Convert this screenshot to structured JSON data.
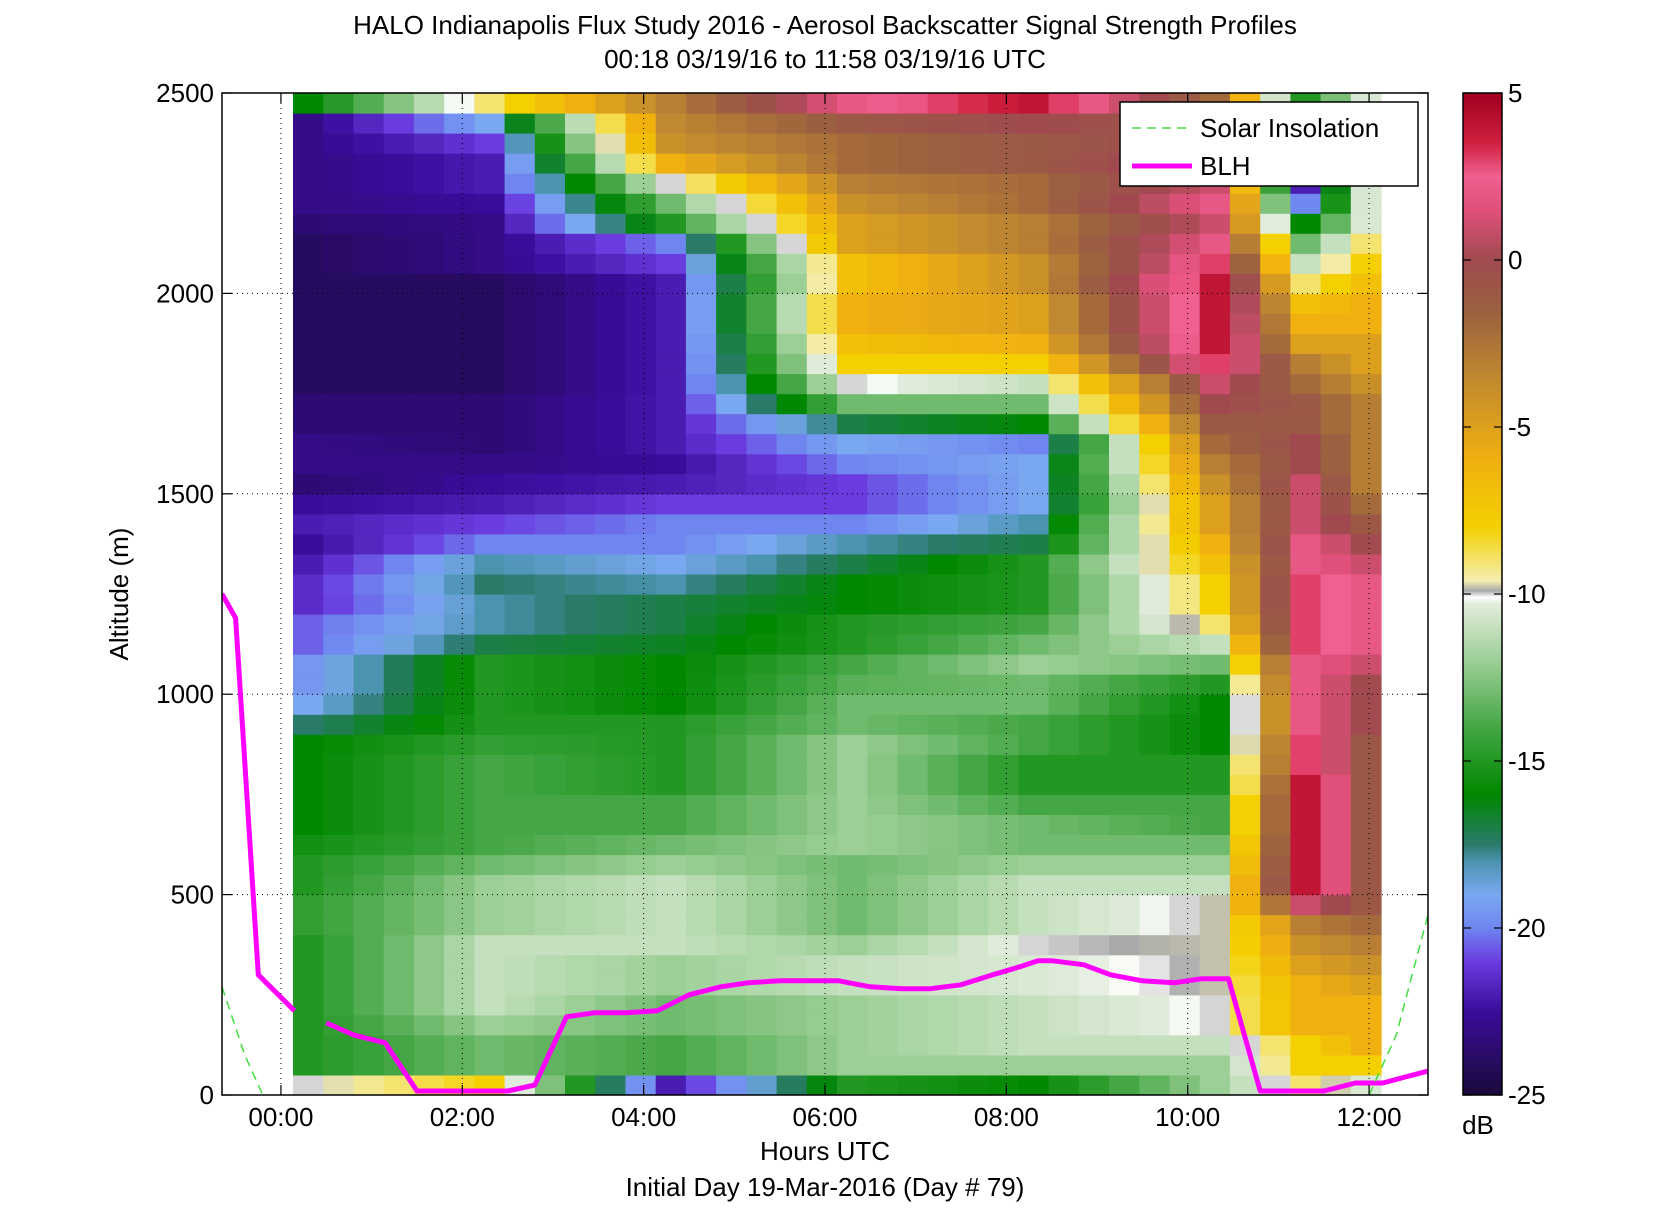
{
  "chart_data": {
    "type": "heatmap",
    "title": "HALO Indianapolis Flux Study 2016 - Aerosol Backscatter Signal Strength Profiles",
    "subtitle": "00:18 03/19/16 to 11:58 03/19/16  UTC",
    "xlabel": "Hours UTC",
    "xlabel2": "Initial Day 19-Mar-2016 (Day # 79)",
    "ylabel": "Altitude (m)",
    "xlim_hours": [
      -0.65,
      12.65
    ],
    "ylim": [
      0,
      2500
    ],
    "x_ticks": [
      {
        "hour": 0,
        "label": "00:00"
      },
      {
        "hour": 2,
        "label": "02:00"
      },
      {
        "hour": 4,
        "label": "04:00"
      },
      {
        "hour": 6,
        "label": "06:00"
      },
      {
        "hour": 8,
        "label": "08:00"
      },
      {
        "hour": 10,
        "label": "10:00"
      },
      {
        "hour": 12,
        "label": "12:00"
      }
    ],
    "y_ticks": [
      0,
      500,
      1000,
      1500,
      2000,
      2500
    ],
    "grid": true,
    "colorbar": {
      "min": -25,
      "max": 5,
      "unit": "dB",
      "ticks": [
        5,
        0,
        -5,
        -10,
        -15,
        -20,
        -25
      ],
      "stops": [
        {
          "v": -25,
          "c": "#1a0a3a"
        },
        {
          "v": -22.5,
          "c": "#3a0c9a"
        },
        {
          "v": -21,
          "c": "#6a3ce0"
        },
        {
          "v": -20,
          "c": "#6f86f0"
        },
        {
          "v": -19,
          "c": "#7aa8f0"
        },
        {
          "v": -18,
          "c": "#4a94b0"
        },
        {
          "v": -17.5,
          "c": "#2a7a6a"
        },
        {
          "v": -16,
          "c": "#008800"
        },
        {
          "v": -14,
          "c": "#44a644"
        },
        {
          "v": -12,
          "c": "#9ccf96"
        },
        {
          "v": -10.3,
          "c": "#e2ecdc"
        },
        {
          "v": -10.1,
          "c": "#ffffff"
        },
        {
          "v": -9.9,
          "c": "#aaaaaa"
        },
        {
          "v": -9.6,
          "c": "#f4eeb0"
        },
        {
          "v": -8,
          "c": "#f4d000"
        },
        {
          "v": -6,
          "c": "#f0b010"
        },
        {
          "v": -3.5,
          "c": "#c08830"
        },
        {
          "v": -1.5,
          "c": "#9a6040"
        },
        {
          "v": 0,
          "c": "#a04a50"
        },
        {
          "v": 1.5,
          "c": "#e0507a"
        },
        {
          "v": 2.5,
          "c": "#f06090"
        },
        {
          "v": 3.5,
          "c": "#d02040"
        },
        {
          "v": 5,
          "c": "#a00020"
        }
      ]
    },
    "time_start_hour": 0.3,
    "time_step_hours": 0.3333,
    "altitude_levels_m": [
      25,
      75,
      125,
      175,
      225,
      275,
      325,
      375,
      425,
      475,
      525,
      575,
      625,
      675,
      725,
      775,
      825,
      875,
      925,
      975,
      1025,
      1075,
      1125,
      1175,
      1225,
      1275,
      1325,
      1375,
      1425,
      1475,
      1525,
      1575,
      1625,
      1675,
      1725,
      1775,
      1825,
      1875,
      1925,
      1975,
      2025,
      2075,
      2125,
      2175,
      2225,
      2275,
      2325,
      2375,
      2425,
      2475
    ],
    "key_profiles_db": [
      {
        "hour": 0.3,
        "values": [
          -10,
          -15,
          -15,
          -15,
          -15,
          -15,
          -15,
          -15,
          -14.5,
          -14.5,
          -15,
          -15,
          -15.5,
          -16,
          -16,
          -16,
          -16,
          -16,
          -17.5,
          -19,
          -19.5,
          -19.5,
          -20.5,
          -20.5,
          -21.5,
          -21.5,
          -22,
          -22.5,
          -22,
          -22.5,
          -23.5,
          -23,
          -23,
          -23.5,
          -23.5,
          -24,
          -24,
          -24,
          -24,
          -24,
          -24,
          -24,
          -24,
          -23.5,
          -23,
          -23,
          -23,
          -23,
          -23,
          -16
        ]
      },
      {
        "hour": 2.3,
        "values": [
          -8,
          -13,
          -13,
          -12,
          -11,
          -11,
          -11,
          -11,
          -12,
          -12,
          -12,
          -13,
          -14,
          -14,
          -14,
          -14,
          -14,
          -14.5,
          -15,
          -15,
          -15,
          -15,
          -17,
          -18,
          -18,
          -17.5,
          -18,
          -20,
          -21,
          -22,
          -22.5,
          -23,
          -23.5,
          -23.5,
          -23.5,
          -24,
          -24,
          -24,
          -24,
          -24,
          -24,
          -23,
          -23,
          -23,
          -22.5,
          -22,
          -22,
          -21,
          -19,
          -9
        ]
      },
      {
        "hour": 4.3,
        "values": [
          -22,
          -14,
          -14,
          -13,
          -13,
          -12,
          -12,
          -11,
          -11,
          -11,
          -11,
          -12,
          -13,
          -14,
          -14,
          -15,
          -15,
          -15,
          -15,
          -16,
          -16,
          -16,
          -16.5,
          -17,
          -17,
          -18,
          -19,
          -20,
          -20,
          -21,
          -22,
          -22.5,
          -22,
          -22,
          -22,
          -22,
          -22,
          -22,
          -22,
          -22,
          -22,
          -21,
          -20,
          -15,
          -13,
          -10,
          -6,
          -4,
          -3.5,
          -3
        ]
      },
      {
        "hour": 6.3,
        "values": [
          -15,
          -12,
          -12,
          -12,
          -12,
          -11,
          -11,
          -12,
          -13,
          -13,
          -13,
          -13,
          -12,
          -12,
          -12,
          -12,
          -12,
          -12,
          -13,
          -13,
          -13.5,
          -14,
          -15,
          -15,
          -16,
          -16,
          -17,
          -18,
          -20,
          -21,
          -21,
          -20,
          -19,
          -17,
          -13,
          -10,
          -8,
          -7,
          -6,
          -6,
          -7,
          -7,
          -5,
          -5,
          -4,
          -3,
          -2,
          -2,
          -1,
          2
        ]
      },
      {
        "hour": 8.3,
        "values": [
          -16,
          -12,
          -11,
          -11,
          -11,
          -10.5,
          -10.5,
          -10,
          -11,
          -11,
          -11,
          -12,
          -13,
          -13,
          -14,
          -15,
          -15,
          -14,
          -14,
          -13,
          -13,
          -12,
          -13,
          -14,
          -15,
          -15,
          -15,
          -17,
          -18,
          -19,
          -19,
          -19,
          -20,
          -16,
          -13,
          -11,
          -8,
          -6,
          -5,
          -5,
          -4,
          -4,
          -3,
          -3,
          -2,
          -2,
          -1,
          -1,
          0,
          4
        ]
      },
      {
        "hour": 10.3,
        "values": [
          -12,
          -12,
          -11,
          -10,
          -10,
          -9.8,
          -9.8,
          -9.8,
          -9.8,
          -9.8,
          -11,
          -12,
          -13,
          -14,
          -14,
          -15,
          -15,
          -16,
          -16,
          -16,
          -15,
          -13,
          -11,
          -9,
          -8,
          -8,
          -7,
          -6,
          -5,
          -5,
          -4,
          -3,
          -2,
          -1,
          0,
          1,
          3,
          4,
          4,
          4,
          4,
          3,
          2,
          1,
          2,
          1,
          1,
          0,
          -1,
          -2
        ]
      },
      {
        "hour": 11.3,
        "values": [
          -9,
          -8,
          -8,
          -6,
          -6,
          -6,
          -5,
          -4,
          -3,
          1,
          4,
          4,
          4,
          4,
          4,
          4,
          3,
          3,
          2,
          2,
          2,
          2,
          3,
          3,
          3,
          3,
          2,
          2,
          1,
          1,
          1,
          0,
          0,
          -1,
          -1,
          -2,
          -3,
          -5,
          -6,
          -7,
          -9,
          -11,
          -13,
          -16,
          -20,
          -22,
          -23,
          -22,
          -14,
          -15
        ]
      },
      {
        "hour": 11.97,
        "values": [
          -10.5,
          -8,
          -6,
          -6,
          -6,
          -5,
          -4,
          -3,
          -2,
          -1,
          -1,
          -1,
          -1,
          -1,
          -1,
          -1,
          -1,
          -1,
          0,
          0,
          0,
          1,
          2,
          2,
          2,
          2,
          1,
          0,
          -1,
          -2,
          -3,
          -3,
          -3,
          -3,
          -3,
          -4,
          -5,
          -5,
          -6,
          -6,
          -7,
          -8,
          -9,
          -10.5,
          -10.5,
          -10.5,
          -10.5,
          -10.5,
          -10.5,
          -10.5
        ]
      }
    ],
    "series": [
      {
        "name": "BLH",
        "color": "#ff00ff",
        "points": [
          [
            -0.65,
            1250
          ],
          [
            -0.5,
            1190
          ],
          [
            -0.25,
            300
          ],
          [
            0.15,
            210
          ],
          null,
          [
            0.5,
            180
          ],
          [
            0.8,
            150
          ],
          [
            1.15,
            130
          ],
          [
            1.5,
            10
          ],
          [
            1.8,
            10
          ],
          [
            2.1,
            10
          ],
          [
            2.5,
            10
          ],
          [
            2.8,
            25
          ],
          [
            3.15,
            195
          ],
          [
            3.45,
            205
          ],
          [
            3.8,
            205
          ],
          [
            4.15,
            210
          ],
          [
            4.5,
            250
          ],
          [
            4.85,
            270
          ],
          [
            5.15,
            280
          ],
          [
            5.5,
            285
          ],
          [
            5.8,
            285
          ],
          [
            6.15,
            285
          ],
          [
            6.5,
            270
          ],
          [
            6.85,
            265
          ],
          [
            7.15,
            265
          ],
          [
            7.5,
            275
          ],
          [
            7.85,
            300
          ],
          [
            8.15,
            320
          ],
          [
            8.35,
            335
          ],
          [
            8.5,
            335
          ],
          [
            8.85,
            325
          ],
          [
            9.15,
            300
          ],
          [
            9.5,
            285
          ],
          [
            9.85,
            280
          ],
          [
            10.15,
            290
          ],
          [
            10.45,
            290
          ],
          [
            10.8,
            10
          ],
          [
            11.15,
            10
          ],
          [
            11.5,
            10
          ],
          [
            11.85,
            30
          ],
          [
            12.15,
            30
          ],
          [
            12.4,
            45
          ],
          [
            12.65,
            60
          ]
        ]
      },
      {
        "name": "Solar Insolation",
        "color": "#44dd44",
        "dashed": true,
        "points": [
          [
            -0.65,
            270
          ],
          [
            -0.4,
            100
          ],
          [
            -0.2,
            0
          ],
          null,
          [
            12.0,
            0
          ],
          [
            12.3,
            150
          ],
          [
            12.65,
            450
          ]
        ]
      }
    ]
  }
}
